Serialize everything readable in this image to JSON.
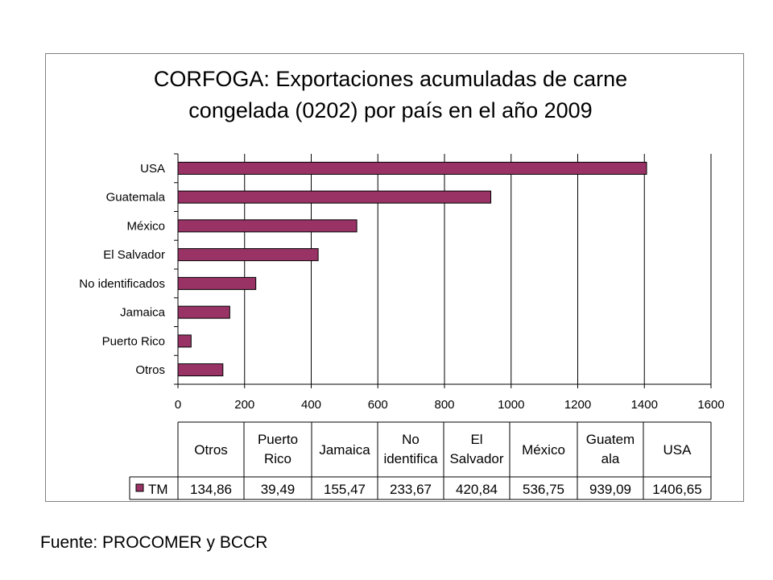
{
  "chart_data": {
    "type": "bar",
    "orientation": "horizontal",
    "title_lines": [
      "CORFOGA: Exportaciones acumuladas de carne",
      "congelada (0202) por país en el año 2009"
    ],
    "categories": [
      "Otros",
      "Puerto Rico",
      "Jamaica",
      "No identificados",
      "El Salvador",
      "México",
      "Guatemala",
      "USA"
    ],
    "table_headers": [
      [
        "Otros"
      ],
      [
        "Puerto",
        "Rico"
      ],
      [
        "Jamaica"
      ],
      [
        "No",
        "identifica"
      ],
      [
        "El",
        "Salvador"
      ],
      [
        "México"
      ],
      [
        "Guatem",
        "ala"
      ],
      [
        "USA"
      ]
    ],
    "series": [
      {
        "name": "TM",
        "values": [
          134.86,
          39.49,
          155.47,
          233.67,
          420.84,
          536.75,
          939.09,
          1406.65
        ]
      }
    ],
    "table_values": [
      "134,86",
      "39,49",
      "155,47",
      "233,67",
      "420,84",
      "536,75",
      "939,09",
      "1406,65"
    ],
    "xlim": [
      0,
      1600
    ],
    "xticks": [
      0,
      200,
      400,
      600,
      800,
      1000,
      1200,
      1400,
      1600
    ],
    "grid": true,
    "legend": "data-table",
    "colors": {
      "bar": "#993366",
      "bar_edge": "#000000",
      "grid": "#000000"
    }
  },
  "source_text": "Fuente: PROCOMER y BCCR"
}
